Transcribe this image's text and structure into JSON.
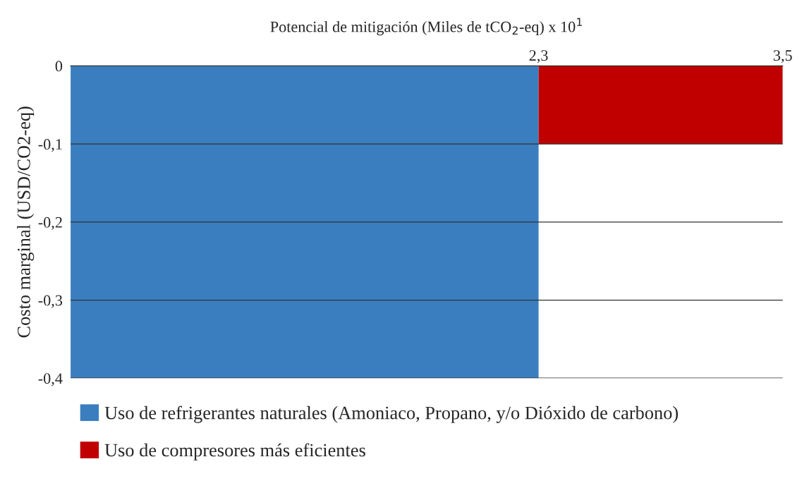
{
  "chart_data": {
    "type": "bar",
    "xlabel": "Potencial de mitigación (Miles de tCO$_{2}$-eq) x 10$^{1}$",
    "ylabel": "Costo marginal (USD/CO2-eq)",
    "x": [
      1.15,
      2.9
    ],
    "series": [
      {
        "name": "Uso de refrigerantes naturales (Amoniaco, Propano, y/o Dióxido de carbono)",
        "color": "#3a7ebf",
        "values": [
          -0.4,
          null
        ]
      },
      {
        "name": "Uso de compresores más eficientes",
        "color": "#c00000",
        "values": [
          null,
          -0.1
        ]
      }
    ],
    "xlim": [
      0,
      3.5
    ],
    "xticks": [
      {
        "value": 2.3,
        "label": "2,3"
      },
      {
        "value": 3.5,
        "label": "3,5"
      }
    ],
    "ylim": [
      -0.4,
      0
    ],
    "yticks": [
      {
        "value": 0,
        "label": "0"
      },
      {
        "value": -0.1,
        "label": "-0,1"
      },
      {
        "value": -0.2,
        "label": "-0,2"
      },
      {
        "value": -0.3,
        "label": "-0,3"
      },
      {
        "value": -0.4,
        "label": "-0,4"
      }
    ],
    "grid": "y",
    "legend": "bottom"
  }
}
